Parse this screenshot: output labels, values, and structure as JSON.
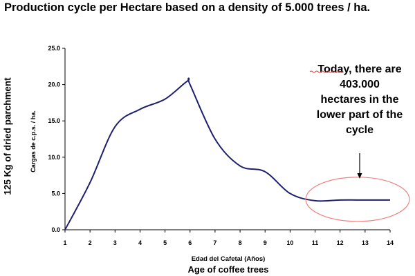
{
  "title": "Production cycle per Hectare based on a density of 5.000 trees / ha.",
  "outer_ylabel": "125 Kg of dried parchment",
  "outer_xlabel": "Age of coffee trees",
  "annotation": "Today, there are\n403.000\nhectares in the\nlower part of the\ncycle",
  "colors": {
    "line": "#1f1f6e",
    "ellipse": "#f08080",
    "axis": "#000000"
  },
  "chart_data": {
    "type": "line",
    "xlabel": "Edad del Cafetal (Años)",
    "ylabel": "Cargas de c.p.s. / ha.",
    "xlim": [
      1,
      14
    ],
    "ylim": [
      0,
      25
    ],
    "x_ticks": [
      "1",
      "2",
      "3",
      "4",
      "5",
      "6",
      "7",
      "8",
      "9",
      "10",
      "11",
      "12",
      "13",
      "14"
    ],
    "y_ticks": [
      "0.0",
      "5.0",
      "10.0",
      "15.0",
      "20.0",
      "25.0"
    ],
    "x": [
      1,
      2,
      3,
      4,
      5,
      5.9,
      6,
      7,
      8,
      9,
      10,
      11,
      12,
      13,
      14
    ],
    "y": [
      0,
      6.5,
      14.2,
      16.6,
      18.0,
      20.5,
      20.0,
      12.5,
      8.8,
      8.0,
      5.0,
      4.0,
      4.1,
      4.1,
      4.1
    ],
    "legend": "none",
    "grid": false
  }
}
